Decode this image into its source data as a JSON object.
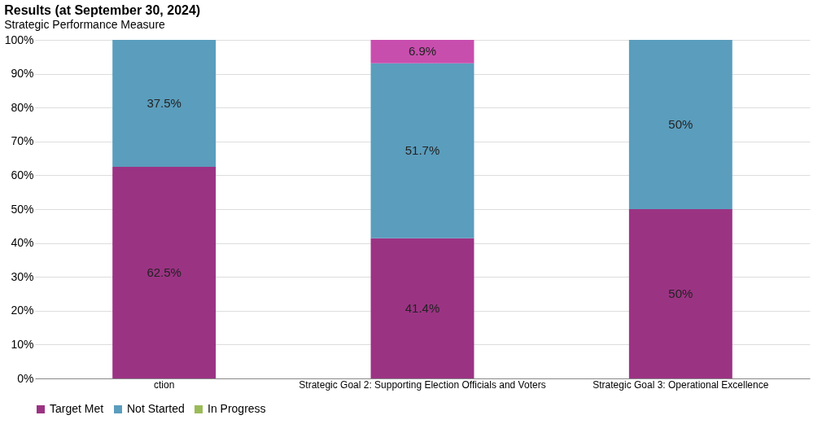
{
  "chart_data": {
    "type": "bar",
    "title": "Results (at September 30, 2024)",
    "subtitle": "Strategic Performance Measure",
    "categories": [
      "ction",
      "Strategic Goal 2: Supporting Election Officials and Voters",
      "Strategic Goal 3: Operational Excellence"
    ],
    "stacked": true,
    "series": [
      {
        "name": "Target Met",
        "color": "#9b3383",
        "values": [
          62.5,
          41.4,
          50
        ],
        "value_labels": [
          "62.5%",
          "41.4%",
          "50%"
        ]
      },
      {
        "name": "Not Started",
        "color": "#5b9dbd",
        "values": [
          37.5,
          51.7,
          50
        ],
        "value_labels": [
          "37.5%",
          "51.7%",
          "50%"
        ]
      },
      {
        "color": "#c84eae",
        "values": [
          null,
          6.9,
          null
        ],
        "value_labels": [
          null,
          "6.9%",
          null
        ]
      },
      {
        "name": "In Progress",
        "color": "#9bbb59",
        "values": [
          null,
          null,
          null
        ]
      }
    ],
    "ylim": [
      0,
      100
    ],
    "yticks": [
      {
        "value": 0,
        "label": "0%"
      },
      {
        "value": 10,
        "label": "10%"
      },
      {
        "value": 20,
        "label": "20%"
      },
      {
        "value": 30,
        "label": "30%"
      },
      {
        "value": 40,
        "label": "40%"
      },
      {
        "value": 50,
        "label": "50%"
      },
      {
        "value": 60,
        "label": "60%"
      },
      {
        "value": 70,
        "label": "70%"
      },
      {
        "value": 80,
        "label": "80%"
      },
      {
        "value": 90,
        "label": "90%"
      },
      {
        "value": 100,
        "label": "100%"
      }
    ],
    "grid": "y",
    "legend": "bottom left"
  }
}
